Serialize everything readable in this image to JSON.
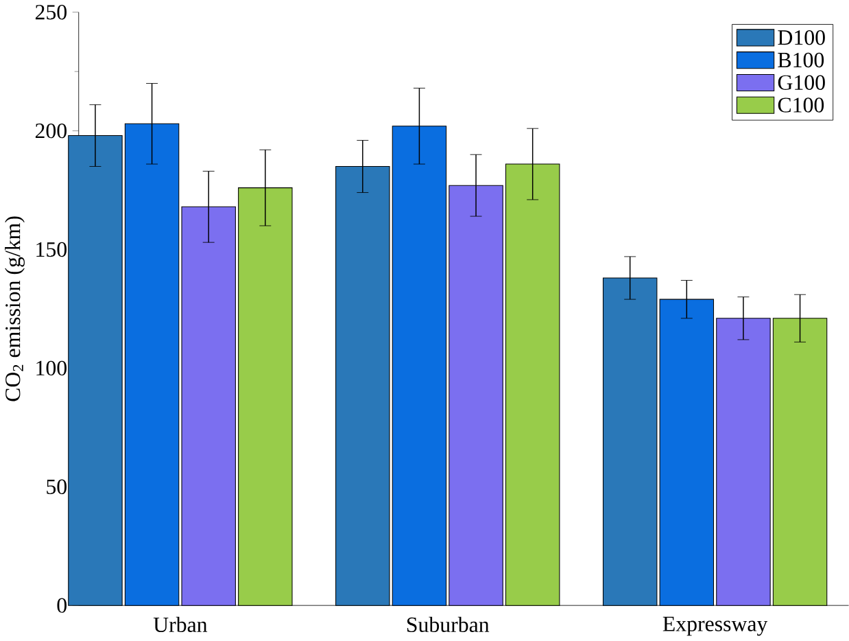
{
  "chart_data": {
    "type": "bar",
    "ylabel": "CO$_{2}$ emission (g/km)",
    "categories": [
      "Urban",
      "Suburban",
      "Expressway"
    ],
    "series": [
      {
        "name": "D100",
        "color": "#2a78b8",
        "values": [
          198,
          185,
          138
        ],
        "errors": [
          [
            185,
            211
          ],
          [
            174,
            196
          ],
          [
            129,
            147
          ]
        ]
      },
      {
        "name": "B100",
        "color": "#0a6ee0",
        "values": [
          203,
          202,
          129
        ],
        "errors": [
          [
            186,
            220
          ],
          [
            186,
            218
          ],
          [
            121,
            137
          ]
        ]
      },
      {
        "name": "G100",
        "color": "#7b6ff0",
        "values": [
          168,
          177,
          121
        ],
        "errors": [
          [
            153,
            183
          ],
          [
            164,
            190
          ],
          [
            112,
            130
          ]
        ]
      },
      {
        "name": "C100",
        "color": "#98cc4a",
        "values": [
          176,
          186,
          121
        ],
        "errors": [
          [
            160,
            192
          ],
          [
            171,
            201
          ],
          [
            111,
            131
          ]
        ]
      }
    ],
    "ylim": [
      0,
      250
    ],
    "yticks": [
      0,
      50,
      100,
      150,
      200,
      250
    ],
    "grid": false,
    "legend": "top right"
  }
}
